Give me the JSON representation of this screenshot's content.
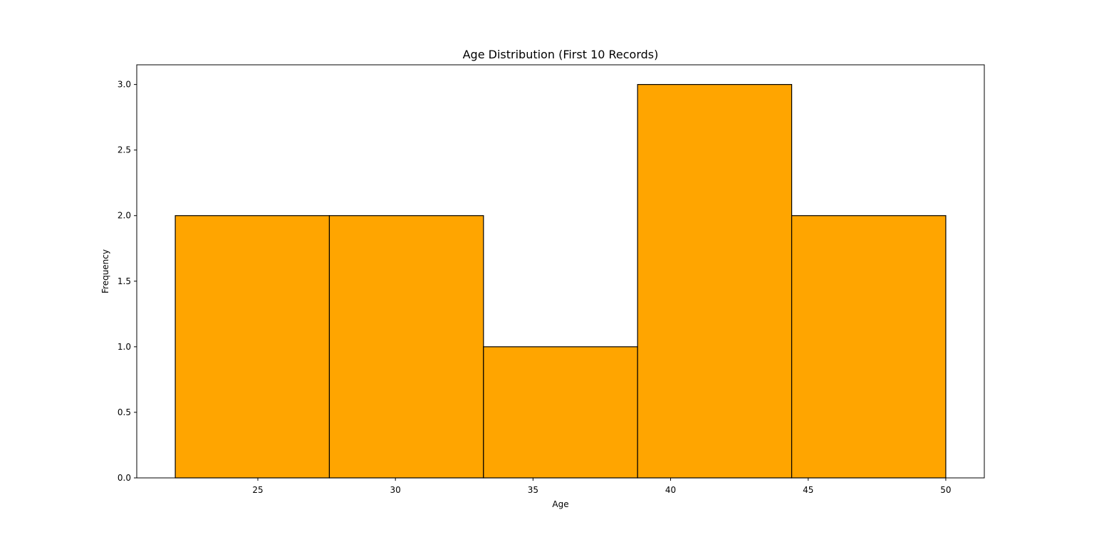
{
  "chart_data": {
    "type": "bar",
    "title": "Age Distribution (First 10 Records)",
    "xlabel": "Age",
    "ylabel": "Frequency",
    "xlim": [
      20.6,
      51.4
    ],
    "ylim": [
      0,
      3.15
    ],
    "bin_edges": [
      22,
      27.6,
      33.2,
      38.8,
      44.4,
      50
    ],
    "values": [
      2,
      2,
      1,
      3,
      2
    ],
    "x_ticks": [
      25,
      30,
      35,
      40,
      45,
      50
    ],
    "x_tick_labels": [
      "25",
      "30",
      "35",
      "40",
      "45",
      "50"
    ],
    "y_ticks": [
      0,
      0.5,
      1.0,
      1.5,
      2.0,
      2.5,
      3.0
    ],
    "y_tick_labels": [
      "0.0",
      "0.5",
      "1.0",
      "1.5",
      "2.0",
      "2.5",
      "3.0"
    ],
    "bar_color": "#ffa500",
    "edge_color": "#000000",
    "grid": false,
    "legend": "none"
  }
}
